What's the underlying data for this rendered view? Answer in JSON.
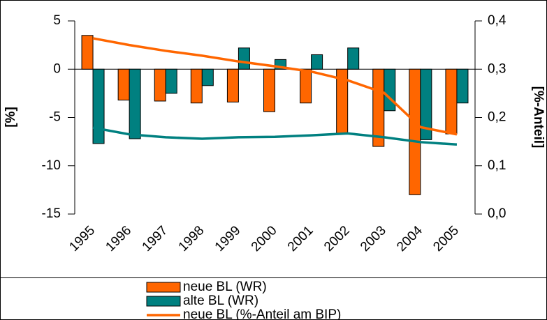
{
  "chart_data": {
    "type": "bar-line",
    "categories": [
      "1995",
      "1996",
      "1997",
      "1998",
      "1999",
      "2000",
      "2001",
      "2002",
      "2003",
      "2004",
      "2005"
    ],
    "series": [
      {
        "name": "neue BL (WR)",
        "kind": "bar",
        "color": "#ff6600",
        "values": [
          3.5,
          -3.2,
          -3.3,
          -3.5,
          -3.4,
          -4.4,
          -3.5,
          -6.7,
          -8.0,
          -13.0,
          -6.7
        ]
      },
      {
        "name": "alte BL (WR)",
        "kind": "bar",
        "color": "#008080",
        "values": [
          -7.7,
          -7.2,
          -2.5,
          -1.7,
          2.2,
          1.0,
          1.5,
          2.2,
          -4.3,
          -7.3,
          -3.5
        ]
      },
      {
        "name": "neue BL (%-Anteil am BIP)",
        "kind": "line",
        "axis": "y2",
        "color": "#ff6600",
        "values": [
          0.364,
          0.35,
          0.338,
          0.328,
          0.316,
          0.306,
          0.295,
          0.277,
          0.251,
          0.18,
          0.165
        ]
      },
      {
        "kind": "line",
        "axis": "y2",
        "color": "#008080",
        "values": [
          0.179,
          0.165,
          0.159,
          0.156,
          0.159,
          0.16,
          0.163,
          0.167,
          0.159,
          0.149,
          0.144
        ]
      }
    ],
    "ylabel": "[%]",
    "y2label": "[%-Anteil]",
    "ylim": [
      -15,
      5
    ],
    "yticks": [
      5,
      0,
      -5,
      -10,
      -15
    ],
    "y2lim": [
      0,
      0.4
    ],
    "y2ticks": [
      {
        "value": 0.4,
        "label": "0,4"
      },
      {
        "value": 0.3,
        "label": "0,3"
      },
      {
        "value": 0.2,
        "label": "0,2"
      },
      {
        "value": 0.1,
        "label": "0,1"
      },
      {
        "value": 0,
        "label": "0,0"
      }
    ]
  }
}
